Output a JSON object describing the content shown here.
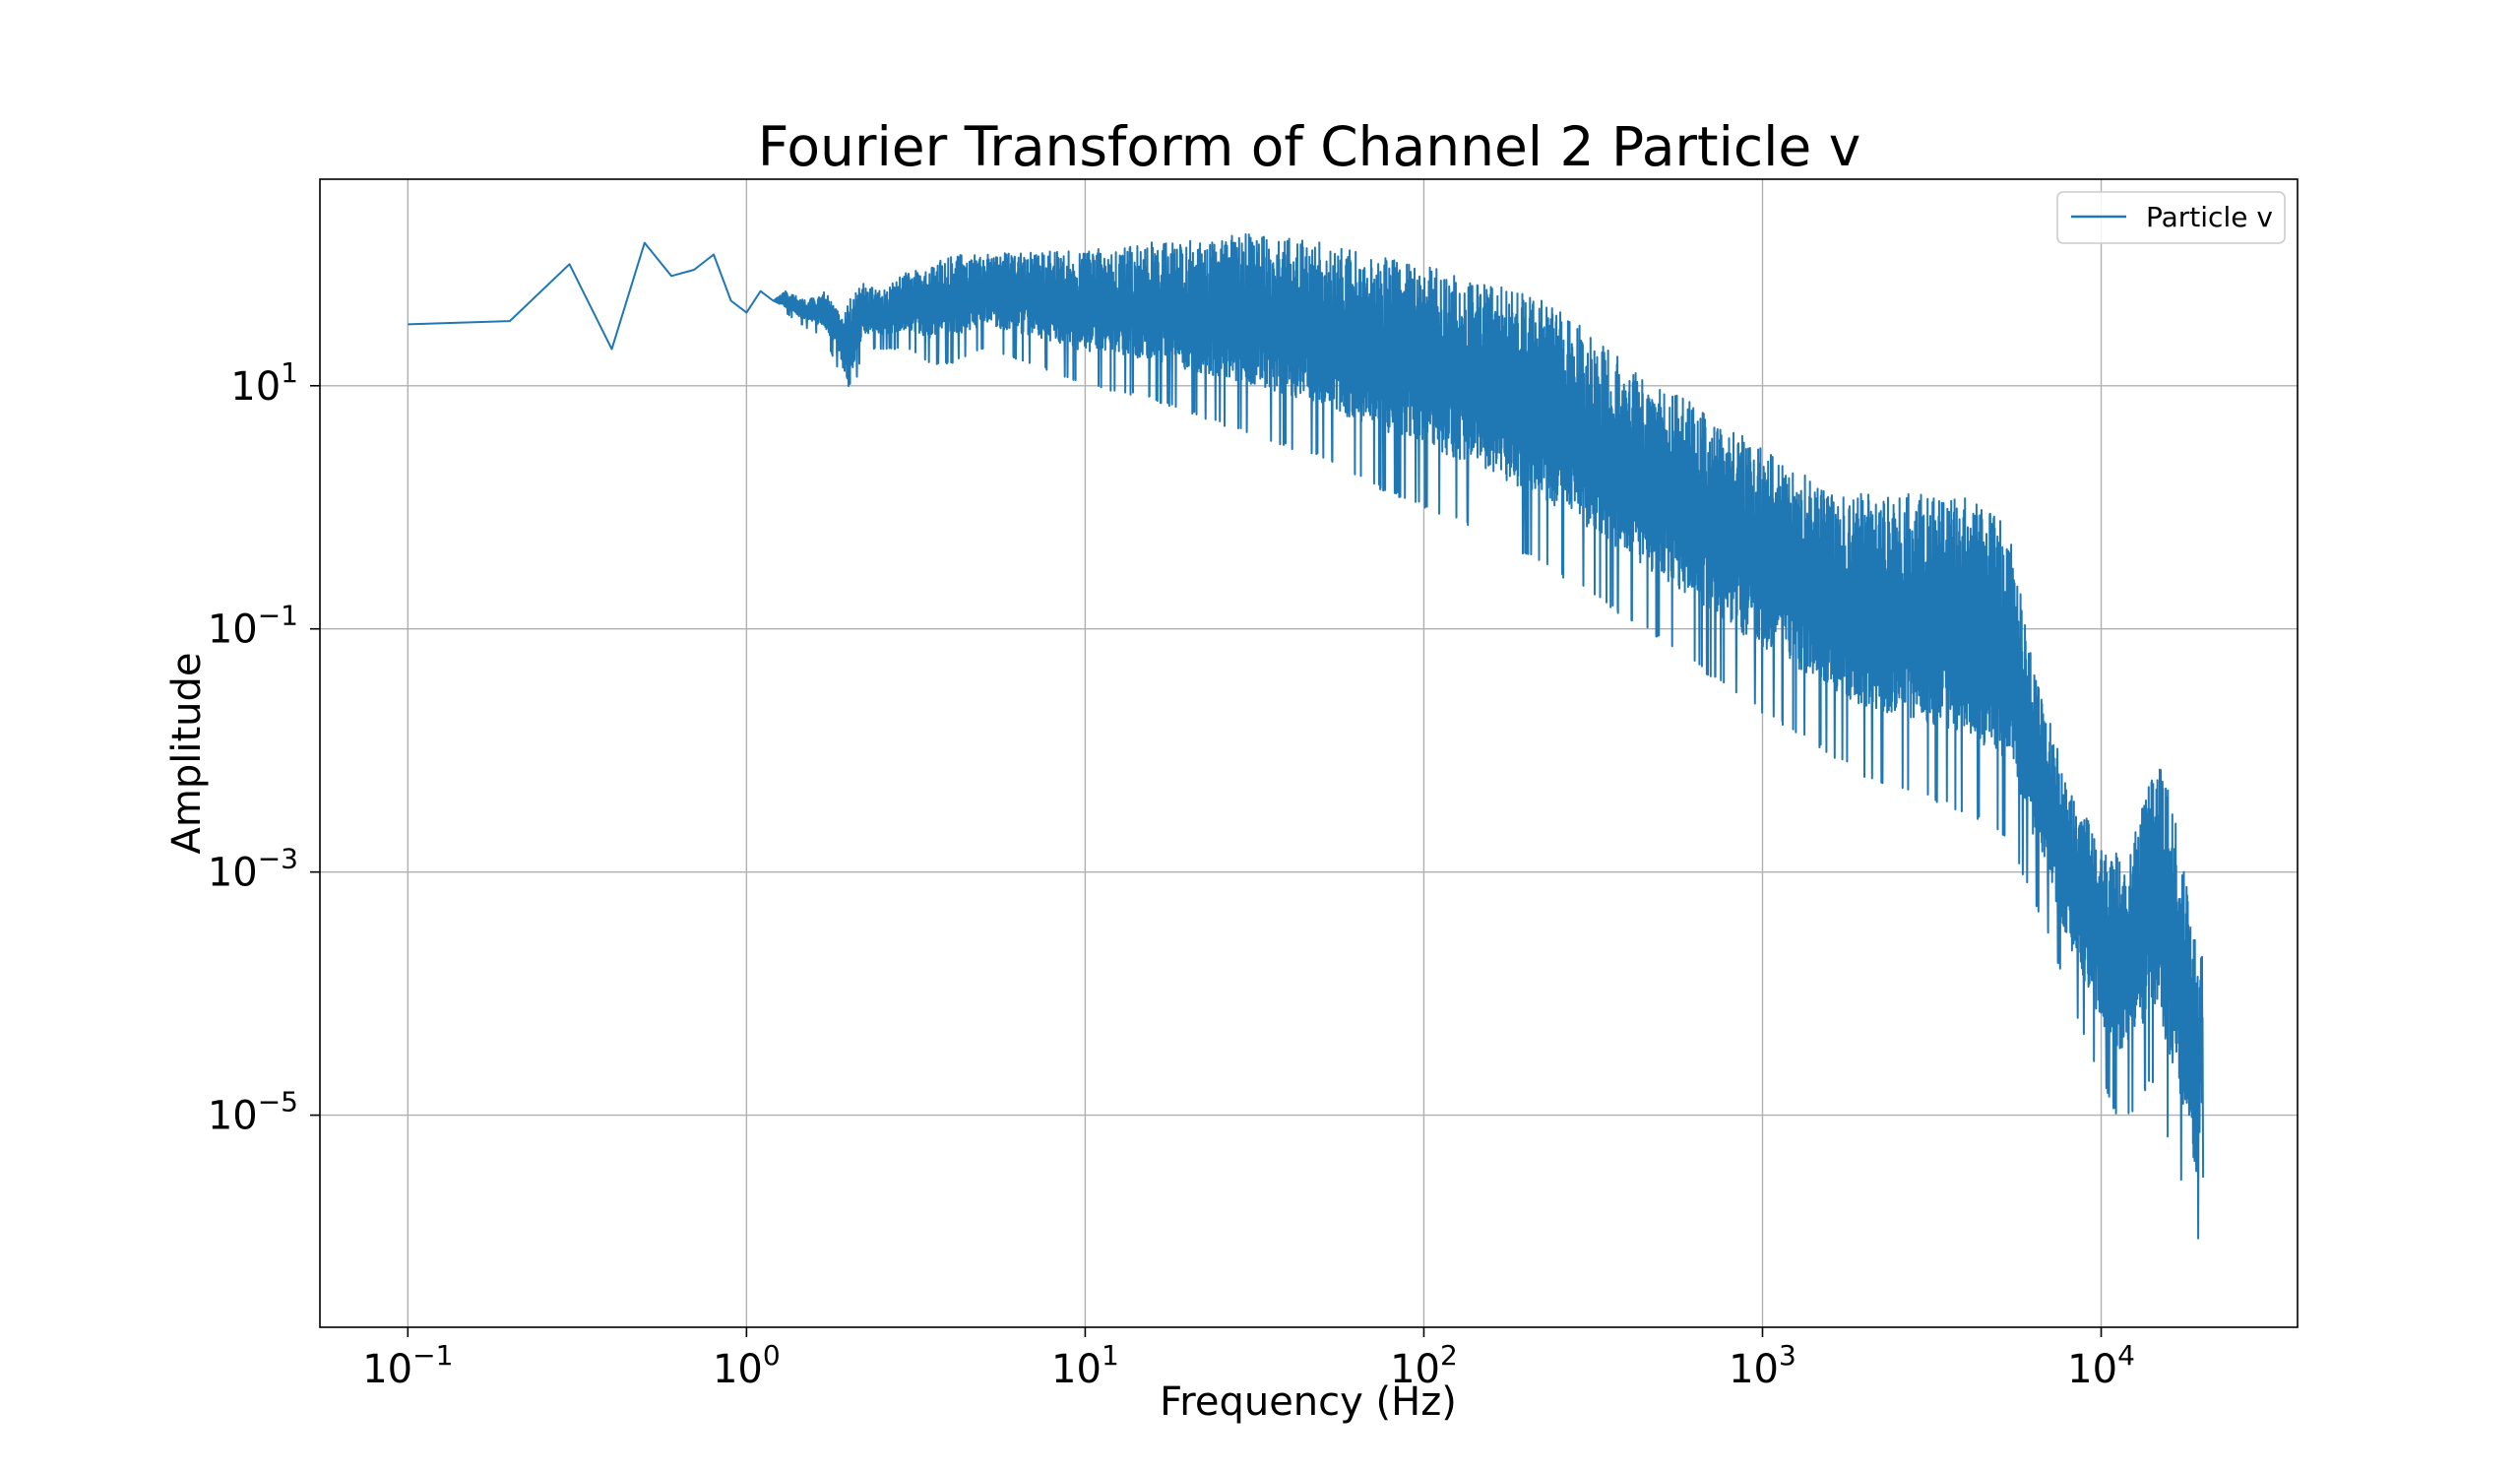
{
  "chart_data": {
    "type": "line",
    "title": "Fourier Transform of Channel 2 Particle v",
    "xlabel": "Frequency (Hz)",
    "ylabel": "Amplitude",
    "x_scale": "log",
    "y_scale": "log",
    "xlim": [
      0.055,
      38000
    ],
    "ylim": [
      1.8e-07,
      500
    ],
    "x_ticks": [
      {
        "value": 0.1,
        "base": "10",
        "exp": "−1"
      },
      {
        "value": 1,
        "base": "10",
        "exp": "0"
      },
      {
        "value": 10,
        "base": "10",
        "exp": "1"
      },
      {
        "value": 100,
        "base": "10",
        "exp": "2"
      },
      {
        "value": 1000,
        "base": "10",
        "exp": "3"
      },
      {
        "value": 10000,
        "base": "10",
        "exp": "4"
      }
    ],
    "y_ticks": [
      {
        "value": 10,
        "base": "10",
        "exp": "1"
      },
      {
        "value": 0.1,
        "base": "10",
        "exp": "−1"
      },
      {
        "value": 0.001,
        "base": "10",
        "exp": "−3"
      },
      {
        "value": 1e-05,
        "base": "10",
        "exp": "−5"
      }
    ],
    "grid": true,
    "legend": {
      "position": "top-right",
      "entries": [
        "Particle v"
      ]
    },
    "line_color": "#1f77b4",
    "series": [
      {
        "name": "Particle v",
        "x": [
          0.1,
          0.2,
          0.3,
          0.4,
          0.5,
          0.6,
          0.7,
          0.8,
          0.9,
          1.0,
          1.1,
          1.2,
          1.3,
          1.5,
          1.7,
          1.9,
          2.0,
          2.2,
          2.5,
          3.0,
          3.5,
          4.0,
          5,
          7,
          10,
          15,
          20,
          30,
          50,
          70,
          100,
          150,
          200,
          300,
          500,
          700,
          1000,
          1500,
          2000,
          3000,
          4000,
          5000,
          5500,
          6000,
          7000,
          8000,
          9000,
          10000,
          11000,
          12000,
          13000,
          14000,
          15000,
          16000,
          17000,
          18000,
          19000,
          20000
        ],
        "upper": [
          32,
          34,
          100,
          20,
          150,
          80,
          90,
          120,
          50,
          40,
          60,
          50,
          60,
          50,
          60,
          40,
          50,
          70,
          60,
          90,
          100,
          120,
          120,
          130,
          130,
          150,
          160,
          180,
          150,
          120,
          100,
          70,
          60,
          30,
          10,
          6,
          3,
          1.5,
          1.3,
          1.3,
          1.2,
          0.9,
          0.5,
          0.1,
          0.02,
          0.005,
          0.003,
          0.0016,
          0.0015,
          0.0016,
          0.003,
          0.006,
          0.008,
          0.006,
          0.002,
          0.0007,
          0.0003,
          0.0002
        ],
        "lower": [
          32,
          34,
          100,
          20,
          150,
          80,
          90,
          120,
          50,
          40,
          60,
          50,
          40,
          30,
          25,
          12,
          5,
          20,
          20,
          20,
          15,
          15,
          20,
          15,
          10,
          8,
          6,
          4,
          2.5,
          1.5,
          1,
          0.6,
          0.4,
          0.2,
          0.08,
          0.04,
          0.02,
          0.01,
          0.006,
          0.004,
          0.003,
          0.002,
          0.0015,
          0.0008,
          0.0003,
          0.0001,
          4e-05,
          2e-05,
          1e-05,
          1e-05,
          1.2e-05,
          2e-05,
          1e-05,
          5e-06,
          3e-06,
          2e-06,
          5e-07,
          3e-06
        ]
      }
    ]
  }
}
